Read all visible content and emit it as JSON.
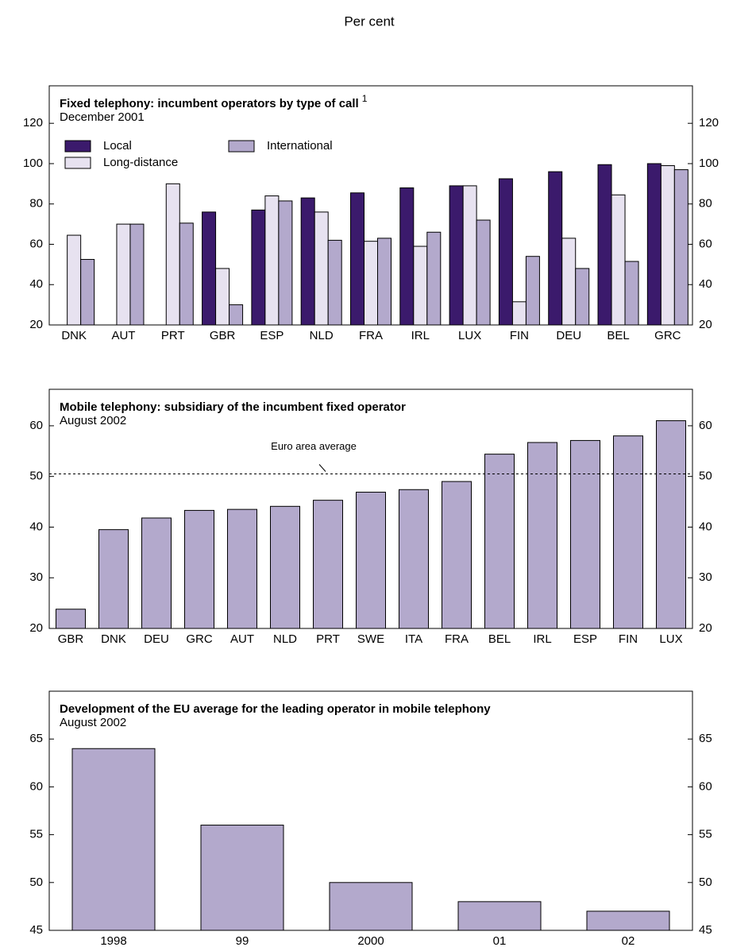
{
  "page_title": "Per cent",
  "chart_data": [
    {
      "type": "bar",
      "title": "Fixed telephony: incumbent operators by type of call",
      "title_note": "1",
      "subtitle": "December 2001",
      "categories": [
        "DNK",
        "AUT",
        "PRT",
        "GBR",
        "ESP",
        "NLD",
        "FRA",
        "IRL",
        "LUX",
        "FIN",
        "DEU",
        "BEL",
        "GRC"
      ],
      "series": [
        {
          "name": "Local",
          "color": "#3b1a6c",
          "values": [
            null,
            null,
            null,
            76,
            77,
            83,
            85.5,
            88,
            89,
            92.5,
            96,
            99.5,
            100
          ]
        },
        {
          "name": "Long-distance",
          "color": "#e7e2f0",
          "values": [
            64.5,
            70,
            90,
            48,
            84,
            76,
            61.5,
            59,
            89,
            31.5,
            63,
            84.5,
            99
          ]
        },
        {
          "name": "International",
          "color": "#b3a9cc",
          "values": [
            52.5,
            70,
            70.5,
            30,
            81.5,
            62,
            63,
            66,
            72,
            54,
            48,
            51.5,
            97
          ]
        }
      ],
      "ylim": [
        20,
        138.6
      ],
      "yticks": [
        20,
        40,
        60,
        80,
        100,
        120
      ],
      "legend": "top-left"
    },
    {
      "type": "bar",
      "title": "Mobile telephony: subsidiary of the incumbent fixed operator",
      "subtitle": "August 2002",
      "categories": [
        "GBR",
        "DNK",
        "DEU",
        "GRC",
        "AUT",
        "NLD",
        "PRT",
        "SWE",
        "ITA",
        "FRA",
        "BEL",
        "IRL",
        "ESP",
        "FIN",
        "LUX"
      ],
      "values": [
        23.8,
        39.5,
        41.8,
        43.3,
        43.5,
        44.1,
        45.3,
        46.9,
        47.4,
        49,
        54.4,
        56.7,
        57.1,
        58,
        61
      ],
      "color": "#b3a9cc",
      "ylim": [
        20,
        67.2
      ],
      "yticks": [
        20,
        30,
        40,
        50,
        60
      ],
      "reference_line": {
        "label": "Euro area average",
        "value": 50.5
      }
    },
    {
      "type": "bar",
      "title": "Development of the EU average for the leading operator in mobile telephony",
      "subtitle": "August 2002",
      "categories": [
        "1998",
        "99",
        "2000",
        "01",
        "02"
      ],
      "values": [
        64,
        56,
        50,
        48,
        47
      ],
      "color": "#b3a9cc",
      "ylim": [
        45,
        70
      ],
      "yticks": [
        45,
        50,
        55,
        60,
        65
      ]
    }
  ]
}
